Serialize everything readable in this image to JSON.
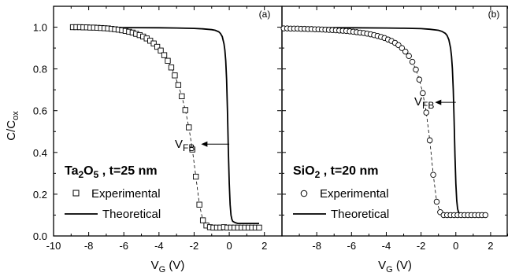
{
  "chart_data": [
    {
      "panel": "(a)",
      "type": "line",
      "xlabel": "V",
      "xlabel_sub": "G",
      "xlabel_unit": " (V)",
      "ylabel": "C/C",
      "ylabel_sub": "ox",
      "xlim": [
        -10,
        3
      ],
      "ylim": [
        0.0,
        1.1
      ],
      "xticks": [
        -10,
        -8,
        -6,
        -4,
        -2,
        0,
        2
      ],
      "xtick_labels": [
        "-10",
        "-8",
        "-6",
        "-4",
        "-2",
        "0",
        "2"
      ],
      "yticks": [
        0.0,
        0.2,
        0.4,
        0.6,
        0.8,
        1.0
      ],
      "ytick_labels": [
        "0.0",
        "0.2",
        "0.4",
        "0.6",
        "0.8",
        "1.0"
      ],
      "material": {
        "prefix": "Ta",
        "sub1": "2",
        "mid": "O",
        "sub2": "5",
        "suffix": " , t=25 nm"
      },
      "vfb_label": {
        "main": "V",
        "sub": "FB"
      },
      "vfb_arrow": {
        "x_from": 0.0,
        "x_to": -1.6,
        "y": 0.44
      },
      "legend": [
        "Experimental",
        "Theoretical"
      ],
      "series": [
        {
          "name": "Experimental",
          "marker": "square",
          "x": [
            -8.9,
            -8.7,
            -8.5,
            -8.3,
            -8.1,
            -7.9,
            -7.7,
            -7.5,
            -7.3,
            -7.1,
            -6.9,
            -6.7,
            -6.5,
            -6.3,
            -6.1,
            -5.9,
            -5.7,
            -5.5,
            -5.3,
            -5.1,
            -4.9,
            -4.7,
            -4.5,
            -4.3,
            -4.1,
            -3.9,
            -3.7,
            -3.5,
            -3.3,
            -3.1,
            -2.9,
            -2.7,
            -2.5,
            -2.3,
            -2.1,
            -1.9,
            -1.7,
            -1.5,
            -1.3,
            -1.1,
            -0.9,
            -0.7,
            -0.5,
            -0.3,
            -0.1,
            0.1,
            0.3,
            0.5,
            0.7,
            0.9,
            1.1,
            1.3,
            1.5,
            1.7
          ],
          "y": [
            1.0,
            1.0,
            1.0,
            0.999,
            0.999,
            0.998,
            0.998,
            0.997,
            0.996,
            0.995,
            0.994,
            0.992,
            0.99,
            0.988,
            0.985,
            0.982,
            0.978,
            0.974,
            0.968,
            0.962,
            0.955,
            0.946,
            0.935,
            0.922,
            0.906,
            0.888,
            0.866,
            0.839,
            0.807,
            0.769,
            0.723,
            0.669,
            0.603,
            0.52,
            0.414,
            0.284,
            0.15,
            0.075,
            0.05,
            0.042,
            0.04,
            0.04,
            0.04,
            0.042,
            0.04,
            0.04,
            0.04,
            0.04,
            0.04,
            0.04,
            0.04,
            0.04,
            0.04,
            0.04
          ]
        },
        {
          "name": "Theoretical",
          "x": [
            -8.9,
            -6,
            -4,
            -3,
            -2,
            -1.5,
            -1.0,
            -0.8,
            -0.6,
            -0.5,
            -0.4,
            -0.3,
            -0.25,
            -0.2,
            -0.15,
            -0.1,
            -0.05,
            0.0,
            0.05,
            0.1,
            0.15,
            0.2,
            0.3,
            0.4,
            0.5,
            0.6,
            0.8,
            1.0,
            1.7
          ],
          "y": [
            0.999,
            0.998,
            0.997,
            0.996,
            0.994,
            0.992,
            0.988,
            0.985,
            0.978,
            0.97,
            0.955,
            0.92,
            0.89,
            0.84,
            0.75,
            0.6,
            0.4,
            0.25,
            0.15,
            0.1,
            0.08,
            0.07,
            0.065,
            0.062,
            0.06,
            0.06,
            0.06,
            0.06,
            0.06
          ]
        }
      ]
    },
    {
      "panel": "(b)",
      "type": "line",
      "xlabel": "V",
      "xlabel_sub": "G",
      "xlabel_unit": " (V)",
      "xlim": [
        -10,
        3
      ],
      "ylim": [
        0.0,
        1.1
      ],
      "xticks": [
        -8,
        -6,
        -4,
        -2,
        0,
        2
      ],
      "xtick_labels": [
        "-8",
        "-6",
        "-4",
        "-2",
        "0",
        "2"
      ],
      "yticks": [
        0.0,
        0.2,
        0.4,
        0.6,
        0.8,
        1.0
      ],
      "material": {
        "prefix": "SiO",
        "sub1": "2",
        "mid": "",
        "sub2": "",
        "suffix": " , t=20 nm"
      },
      "vfb_label": {
        "main": "V",
        "sub": "FB"
      },
      "vfb_arrow": {
        "x_from": 0.0,
        "x_to": -1.2,
        "y": 0.64
      },
      "legend": [
        "Experimental",
        "Theoretical"
      ],
      "series": [
        {
          "name": "Experimental",
          "marker": "circle",
          "x": [
            -9.9,
            -9.7,
            -9.5,
            -9.3,
            -9.1,
            -8.9,
            -8.7,
            -8.5,
            -8.3,
            -8.1,
            -7.9,
            -7.7,
            -7.5,
            -7.3,
            -7.1,
            -6.9,
            -6.7,
            -6.5,
            -6.3,
            -6.1,
            -5.9,
            -5.7,
            -5.5,
            -5.3,
            -5.1,
            -4.9,
            -4.7,
            -4.5,
            -4.3,
            -4.1,
            -3.9,
            -3.7,
            -3.5,
            -3.3,
            -3.1,
            -2.9,
            -2.7,
            -2.5,
            -2.3,
            -2.1,
            -1.9,
            -1.7,
            -1.5,
            -1.3,
            -1.1,
            -0.9,
            -0.7,
            -0.5,
            -0.3,
            -0.1,
            0.1,
            0.3,
            0.5,
            0.7,
            0.9,
            1.1,
            1.3,
            1.5,
            1.7
          ],
          "y": [
            0.994,
            0.994,
            0.993,
            0.993,
            0.993,
            0.992,
            0.992,
            0.991,
            0.991,
            0.99,
            0.99,
            0.989,
            0.988,
            0.987,
            0.986,
            0.985,
            0.984,
            0.983,
            0.982,
            0.98,
            0.978,
            0.976,
            0.974,
            0.972,
            0.969,
            0.966,
            0.962,
            0.958,
            0.953,
            0.948,
            0.941,
            0.934,
            0.925,
            0.914,
            0.9,
            0.883,
            0.862,
            0.834,
            0.797,
            0.749,
            0.684,
            0.591,
            0.458,
            0.293,
            0.164,
            0.114,
            0.1,
            0.1,
            0.1,
            0.1,
            0.1,
            0.1,
            0.1,
            0.1,
            0.1,
            0.1,
            0.1,
            0.1,
            0.1
          ]
        },
        {
          "name": "Theoretical",
          "x": [
            -9.9,
            -6,
            -4,
            -3,
            -2,
            -1.5,
            -1.0,
            -0.8,
            -0.6,
            -0.5,
            -0.4,
            -0.3,
            -0.25,
            -0.2,
            -0.15,
            -0.1,
            -0.05,
            0.0,
            0.05,
            0.1,
            0.15,
            0.2,
            0.3,
            0.4,
            0.5,
            0.6,
            0.8,
            1.0,
            1.8
          ],
          "y": [
            0.998,
            0.997,
            0.996,
            0.995,
            0.993,
            0.99,
            0.985,
            0.98,
            0.97,
            0.96,
            0.94,
            0.9,
            0.86,
            0.8,
            0.7,
            0.55,
            0.38,
            0.25,
            0.17,
            0.13,
            0.115,
            0.108,
            0.104,
            0.102,
            0.1,
            0.1,
            0.1,
            0.1,
            0.1
          ]
        }
      ]
    }
  ]
}
